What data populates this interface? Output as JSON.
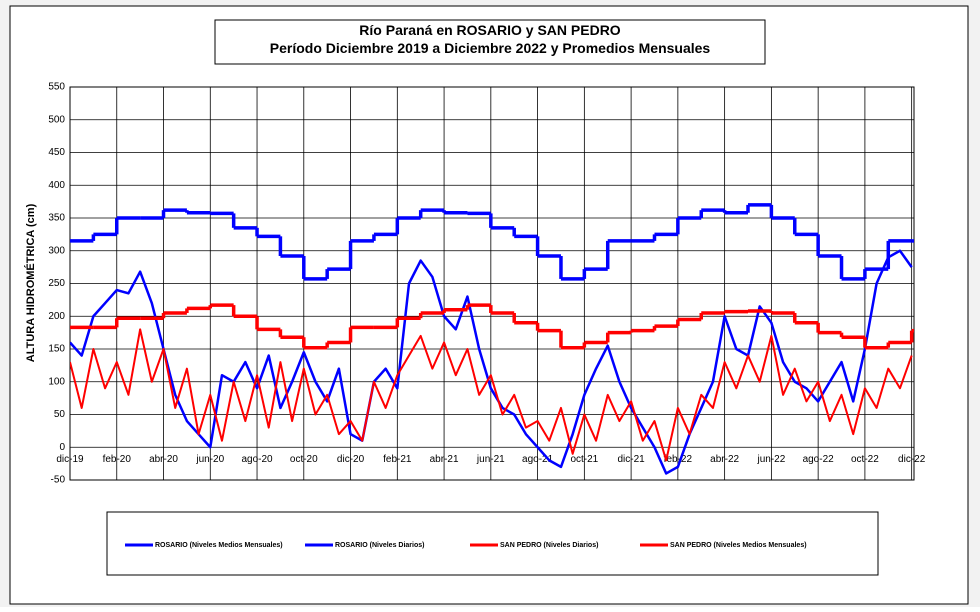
{
  "chart_data": {
    "type": "line",
    "title": "Río Paraná en ROSARIO y SAN PEDRO",
    "subtitle": "Período Diciembre 2019 a Diciembre 2022 y Promedios Mensuales",
    "y_label": "ALTURA HIDROMÉTRICA (cm)",
    "xlim": [
      0,
      36.1
    ],
    "xticks": [
      {
        "value": 0,
        "label": "dic-19"
      },
      {
        "value": 2,
        "label": "feb-20"
      },
      {
        "value": 4,
        "label": "abr-20"
      },
      {
        "value": 6,
        "label": "jun-20"
      },
      {
        "value": 8,
        "label": "ago-20"
      },
      {
        "value": 10,
        "label": "oct-20"
      },
      {
        "value": 12,
        "label": "dic-20"
      },
      {
        "value": 14,
        "label": "feb-21"
      },
      {
        "value": 16,
        "label": "abr-21"
      },
      {
        "value": 18,
        "label": "jun-21"
      },
      {
        "value": 20,
        "label": "ago-21"
      },
      {
        "value": 22,
        "label": "oct-21"
      },
      {
        "value": 24,
        "label": "dic-21"
      },
      {
        "value": 26,
        "label": "feb-22"
      },
      {
        "value": 28,
        "label": "abr-22"
      },
      {
        "value": 30,
        "label": "jun-22"
      },
      {
        "value": 32,
        "label": "ago-22"
      },
      {
        "value": 34,
        "label": "oct-22"
      },
      {
        "value": 36,
        "label": "dic-22"
      }
    ],
    "ylim": [
      -50,
      550
    ],
    "yticks": [
      -50,
      0,
      50,
      100,
      150,
      200,
      250,
      300,
      350,
      400,
      450,
      500,
      550
    ],
    "grid": true,
    "legend_position": "bottom",
    "series": [
      {
        "name": "ROSARIO (Niveles Medios Mensuales)",
        "color": "#0000ff",
        "style": "step",
        "width": 3.5,
        "x": [
          0,
          1,
          2,
          3,
          4,
          5,
          6,
          7,
          8,
          9,
          10,
          11,
          12,
          13,
          14,
          15,
          16,
          17,
          18,
          19,
          20,
          21,
          22,
          23,
          24,
          25,
          26,
          27,
          28,
          29,
          30,
          31,
          32,
          33,
          34,
          35,
          36
        ],
        "values": [
          315,
          325,
          350,
          350,
          362,
          358,
          357,
          335,
          322,
          292,
          257,
          272,
          315,
          325,
          350,
          362,
          358,
          357,
          335,
          322,
          292,
          257,
          272,
          315,
          315,
          325,
          350,
          362,
          358,
          370,
          350,
          325,
          292,
          257,
          272,
          315,
          315
        ]
      },
      {
        "name": "ROSARIO (Niveles Diarios)",
        "color": "#0000ff",
        "style": "line",
        "width": 2.5,
        "x": [
          0,
          0.5,
          1,
          1.5,
          2,
          2.5,
          3,
          3.5,
          4,
          4.5,
          5,
          5.5,
          6,
          6.5,
          7,
          7.5,
          8,
          8.5,
          9,
          9.5,
          10,
          10.5,
          11,
          11.5,
          12,
          12.5,
          13,
          13.5,
          14,
          14.5,
          15,
          15.5,
          16,
          16.5,
          17,
          17.5,
          18,
          18.5,
          19,
          19.5,
          20,
          20.5,
          21,
          21.5,
          22,
          22.5,
          23,
          23.5,
          24,
          24.5,
          25,
          25.5,
          26,
          26.5,
          27,
          27.5,
          28,
          28.5,
          29,
          29.5,
          30,
          30.5,
          31,
          31.5,
          32,
          32.5,
          33,
          33.5,
          34,
          34.5,
          35,
          35.5,
          36
        ],
        "values": [
          160,
          140,
          200,
          220,
          240,
          235,
          268,
          220,
          150,
          80,
          40,
          20,
          0,
          110,
          100,
          130,
          90,
          140,
          60,
          100,
          145,
          100,
          70,
          120,
          20,
          10,
          100,
          120,
          90,
          250,
          285,
          260,
          200,
          180,
          230,
          150,
          90,
          60,
          50,
          20,
          0,
          -20,
          -30,
          20,
          80,
          120,
          155,
          100,
          60,
          30,
          0,
          -40,
          -30,
          20,
          60,
          100,
          200,
          150,
          140,
          215,
          190,
          130,
          100,
          90,
          70,
          100,
          130,
          70,
          150,
          250,
          290,
          300,
          275
        ]
      },
      {
        "name": "SAN PEDRO (Niveles Diarios)",
        "color": "#ff0000",
        "style": "line",
        "width": 2,
        "x": [
          0,
          0.5,
          1,
          1.5,
          2,
          2.5,
          3,
          3.5,
          4,
          4.5,
          5,
          5.5,
          6,
          6.5,
          7,
          7.5,
          8,
          8.5,
          9,
          9.5,
          10,
          10.5,
          11,
          11.5,
          12,
          12.5,
          13,
          13.5,
          14,
          14.5,
          15,
          15.5,
          16,
          16.5,
          17,
          17.5,
          18,
          18.5,
          19,
          19.5,
          20,
          20.5,
          21,
          21.5,
          22,
          22.5,
          23,
          23.5,
          24,
          24.5,
          25,
          25.5,
          26,
          26.5,
          27,
          27.5,
          28,
          28.5,
          29,
          29.5,
          30,
          30.5,
          31,
          31.5,
          32,
          32.5,
          33,
          33.5,
          34,
          34.5,
          35,
          35.5,
          36
        ],
        "values": [
          130,
          60,
          150,
          90,
          130,
          80,
          180,
          100,
          150,
          60,
          120,
          20,
          80,
          10,
          100,
          40,
          110,
          30,
          130,
          40,
          120,
          50,
          80,
          20,
          40,
          10,
          100,
          60,
          110,
          140,
          170,
          120,
          160,
          110,
          150,
          80,
          110,
          50,
          80,
          30,
          40,
          10,
          60,
          -10,
          50,
          10,
          80,
          40,
          70,
          10,
          40,
          -20,
          60,
          20,
          80,
          60,
          130,
          90,
          140,
          100,
          170,
          80,
          120,
          70,
          100,
          40,
          80,
          20,
          90,
          60,
          120,
          90,
          140
        ]
      },
      {
        "name": "SAN PEDRO (Niveles Medios Mensuales)",
        "color": "#ff0000",
        "style": "step",
        "width": 3.5,
        "x": [
          0,
          1,
          2,
          3,
          4,
          5,
          6,
          7,
          8,
          9,
          10,
          11,
          12,
          13,
          14,
          15,
          16,
          17,
          18,
          19,
          20,
          21,
          22,
          23,
          24,
          25,
          26,
          27,
          28,
          29,
          30,
          31,
          32,
          33,
          34,
          35,
          36
        ],
        "values": [
          183,
          183,
          197,
          197,
          205,
          212,
          217,
          200,
          180,
          168,
          152,
          160,
          183,
          183,
          197,
          205,
          210,
          217,
          205,
          190,
          178,
          152,
          160,
          175,
          178,
          185,
          195,
          205,
          207,
          208,
          205,
          190,
          175,
          168,
          152,
          160,
          178
        ]
      }
    ]
  }
}
